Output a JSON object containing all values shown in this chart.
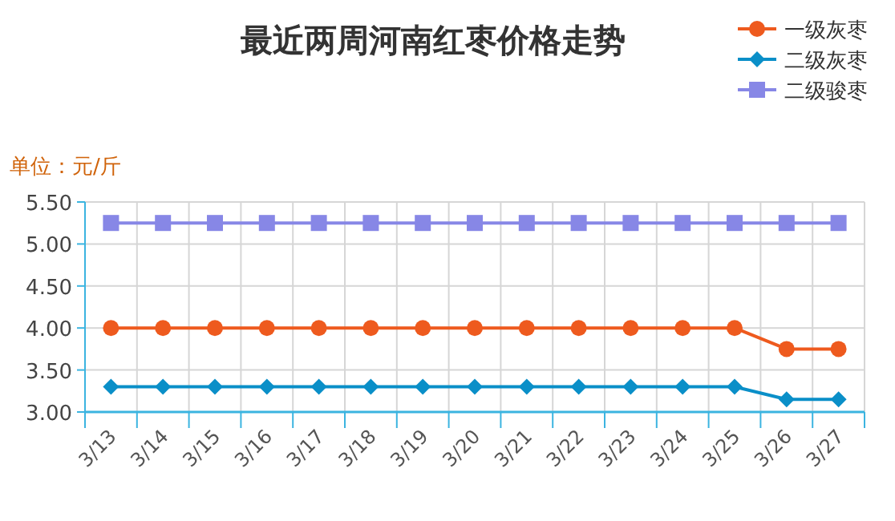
{
  "chart_data": {
    "type": "line",
    "title": "最近两周河南红枣价格走势",
    "ylabel": "单位：元/斤",
    "categories": [
      "3/13",
      "3/14",
      "3/15",
      "3/16",
      "3/17",
      "3/18",
      "3/19",
      "3/20",
      "3/21",
      "3/22",
      "3/23",
      "3/24",
      "3/25",
      "3/26",
      "3/27"
    ],
    "series": [
      {
        "name": "一级灰枣",
        "color": "#ee5a1e",
        "marker": "circle",
        "values": [
          4.0,
          4.0,
          4.0,
          4.0,
          4.0,
          4.0,
          4.0,
          4.0,
          4.0,
          4.0,
          4.0,
          4.0,
          4.0,
          3.75,
          3.75
        ]
      },
      {
        "name": "二级灰枣",
        "color": "#0a8fc8",
        "marker": "diamond",
        "values": [
          3.3,
          3.3,
          3.3,
          3.3,
          3.3,
          3.3,
          3.3,
          3.3,
          3.3,
          3.3,
          3.3,
          3.3,
          3.3,
          3.15,
          3.15
        ]
      },
      {
        "name": "二级骏枣",
        "color": "#8787e6",
        "marker": "square",
        "values": [
          5.25,
          5.25,
          5.25,
          5.25,
          5.25,
          5.25,
          5.25,
          5.25,
          5.25,
          5.25,
          5.25,
          5.25,
          5.25,
          5.25,
          5.25
        ]
      }
    ],
    "ylim": [
      3.0,
      5.5
    ],
    "yticks": [
      {
        "value": 3.0,
        "label": "3.00"
      },
      {
        "value": 3.5,
        "label": "3.50"
      },
      {
        "value": 4.0,
        "label": "4.00"
      },
      {
        "value": 4.5,
        "label": "4.50"
      },
      {
        "value": 5.0,
        "label": "5.00"
      },
      {
        "value": 5.5,
        "label": "5.50"
      }
    ],
    "grid": true,
    "legend": "top right",
    "line_style": "solid"
  }
}
